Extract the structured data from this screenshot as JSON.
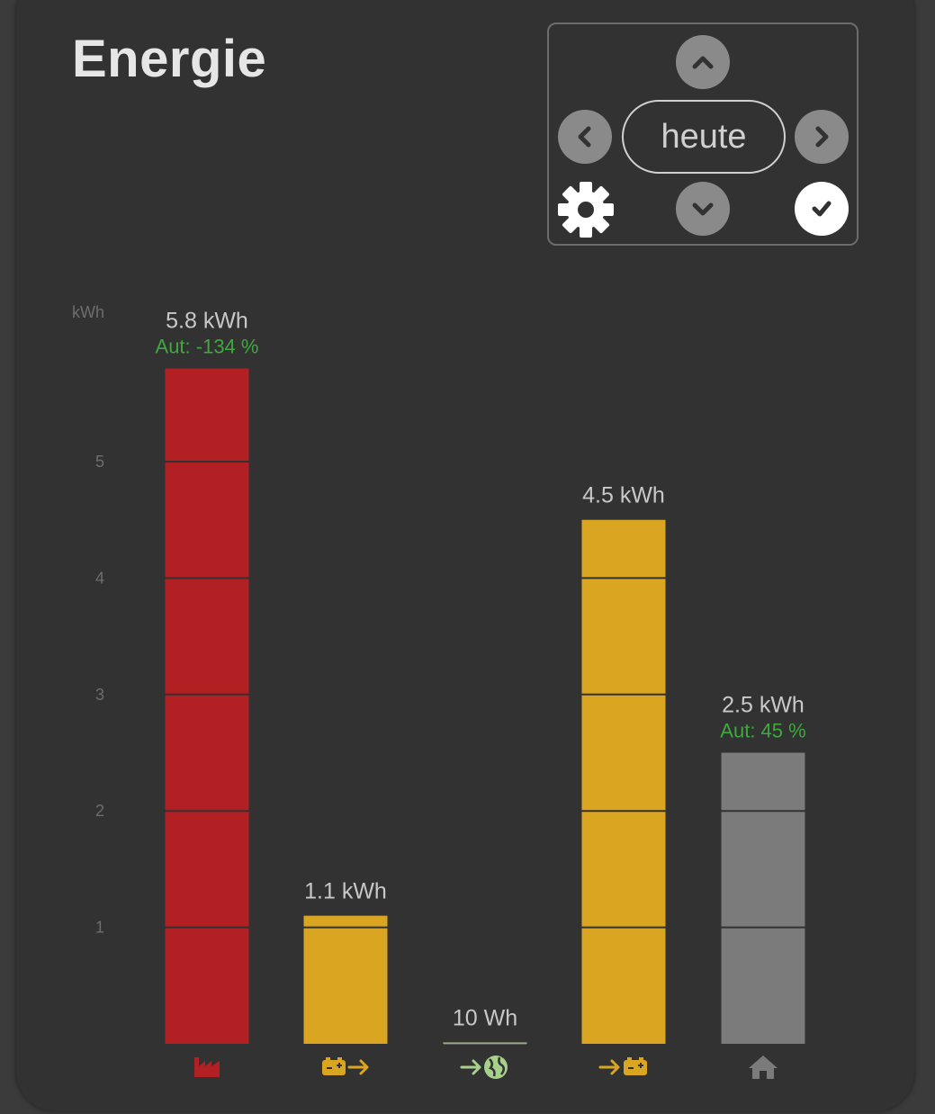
{
  "card": {
    "title": "Energie"
  },
  "nav": {
    "period_label": "heute",
    "icons": {
      "up": "chevron-up-icon",
      "down": "chevron-down-icon",
      "prev": "chevron-left-icon",
      "next": "chevron-right-icon",
      "settings": "gear-icon",
      "confirm": "check-icon"
    }
  },
  "colors": {
    "production": "#b32024",
    "battery": "#daa520",
    "grid": "#a8d08d",
    "consumption": "#7b7b7b",
    "autarky": "#3fa83f"
  },
  "chart_data": {
    "type": "bar",
    "ylabel": "kWh",
    "ylim": [
      0,
      6
    ],
    "yticks": [
      1,
      2,
      3,
      4,
      5
    ],
    "bars": [
      {
        "id": "production",
        "value": 5.8,
        "label": "5.8 kWh",
        "sub_label": "Aut: -134 %",
        "color": "#b32024",
        "icon": "factory-icon"
      },
      {
        "id": "battery-discharge",
        "value": 1.1,
        "label": "1.1 kWh",
        "sub_label": "",
        "color": "#daa520",
        "icon": "battery-out-icon"
      },
      {
        "id": "grid-feed-in",
        "value": 0.01,
        "label": "10 Wh",
        "sub_label": "",
        "color": "#a8d08d",
        "icon": "grid-feed-in-icon"
      },
      {
        "id": "battery-charge",
        "value": 4.5,
        "label": "4.5 kWh",
        "sub_label": "",
        "color": "#daa520",
        "icon": "battery-in-icon"
      },
      {
        "id": "consumption",
        "value": 2.5,
        "label": "2.5 kWh",
        "sub_label": "Aut: 45 %",
        "color": "#7b7b7b",
        "icon": "home-icon"
      }
    ]
  }
}
